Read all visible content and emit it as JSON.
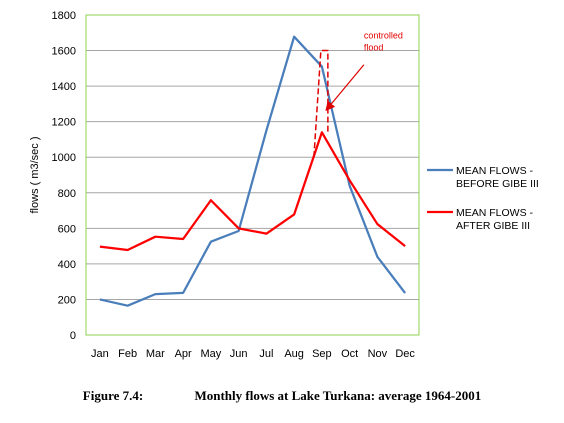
{
  "chart_data": {
    "type": "line",
    "categories": [
      "Jan",
      "Feb",
      "Mar",
      "Apr",
      "May",
      "Jun",
      "Jul",
      "Aug",
      "Sep",
      "Oct",
      "Nov",
      "Dec"
    ],
    "series": [
      {
        "name": "MEAN FLOWS - BEFORE GIBE III",
        "color": "#4a7ebb",
        "values": [
          200,
          165,
          230,
          237,
          525,
          585,
          1150,
          1678,
          1510,
          840,
          440,
          236
        ]
      },
      {
        "name": "MEAN FLOWS - AFTER GIBE III",
        "color": "#ff0000",
        "values": [
          497,
          478,
          553,
          540,
          758,
          600,
          570,
          678,
          1140,
          870,
          624,
          500
        ]
      }
    ],
    "ylabel": "flows ( m3/sec )",
    "ylim": [
      0,
      1800
    ],
    "yticks": [
      0,
      200,
      400,
      600,
      800,
      1000,
      1200,
      1400,
      1600,
      1800
    ],
    "grid": true,
    "legend": "right",
    "legend_lines": [
      [
        "MEAN FLOWS -",
        "BEFORE GIBE III"
      ],
      [
        "MEAN FLOWS -",
        "AFTER GIBE III"
      ]
    ],
    "annotation": {
      "lines": [
        "controlled",
        "flood"
      ],
      "color": "#e00000",
      "month": "Sep",
      "flood_top": 1600,
      "flood_bottom": 1000
    }
  },
  "caption": {
    "number": "Figure 7.4:",
    "text": "Monthly flows at Lake Turkana: average 1964-2001"
  }
}
